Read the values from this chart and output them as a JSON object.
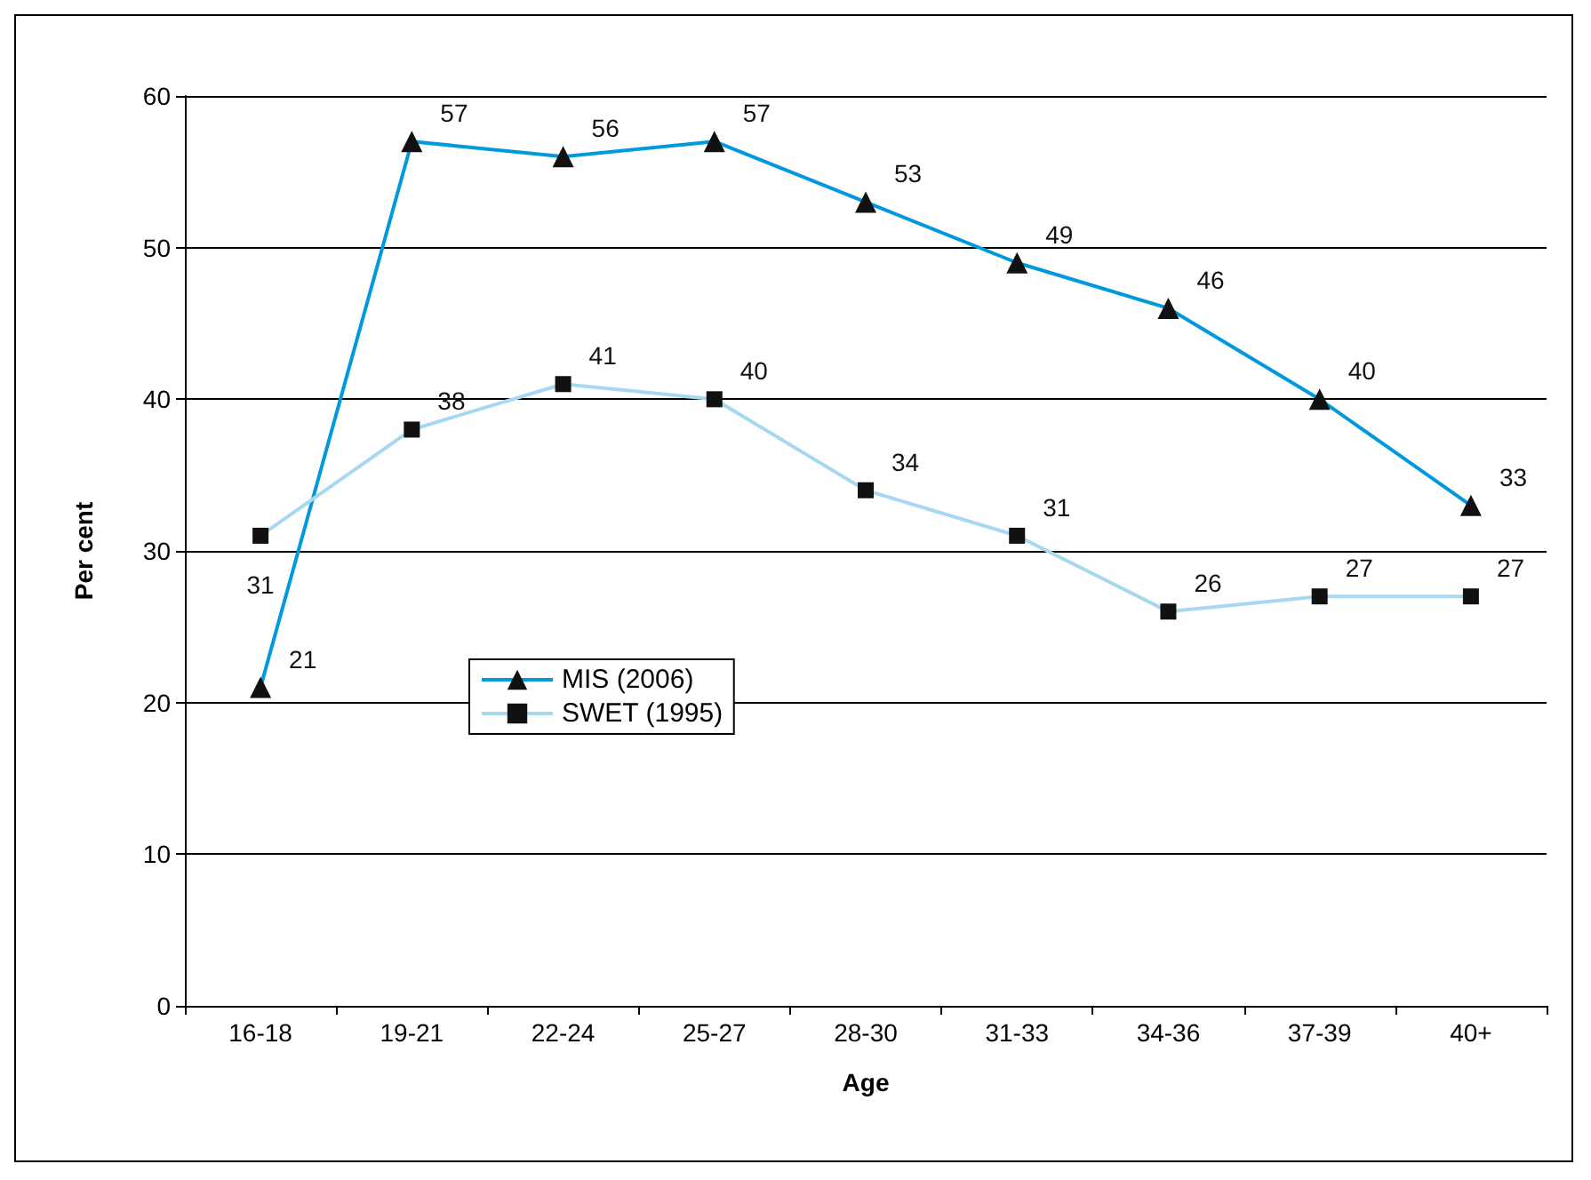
{
  "chart_data": {
    "type": "line",
    "xlabel": "Age",
    "ylabel": "Per cent",
    "categories": [
      "16-18",
      "19-21",
      "22-24",
      "25-27",
      "28-30",
      "31-33",
      "34-36",
      "37-39",
      "40+"
    ],
    "series": [
      {
        "name": "MIS (2006)",
        "color": "#0099dd",
        "marker": "triangle",
        "values": [
          21,
          57,
          56,
          57,
          53,
          49,
          46,
          40,
          33
        ]
      },
      {
        "name": "SWET (1995)",
        "color": "#a6d8f2",
        "marker": "square",
        "values": [
          31,
          38,
          41,
          40,
          34,
          31,
          26,
          27,
          27
        ]
      }
    ],
    "ylim": [
      0,
      60
    ],
    "yticks": [
      0,
      10,
      20,
      30,
      40,
      50,
      60
    ],
    "grid": "y",
    "legend": "left",
    "data_labels": true,
    "line_style": "solid"
  }
}
